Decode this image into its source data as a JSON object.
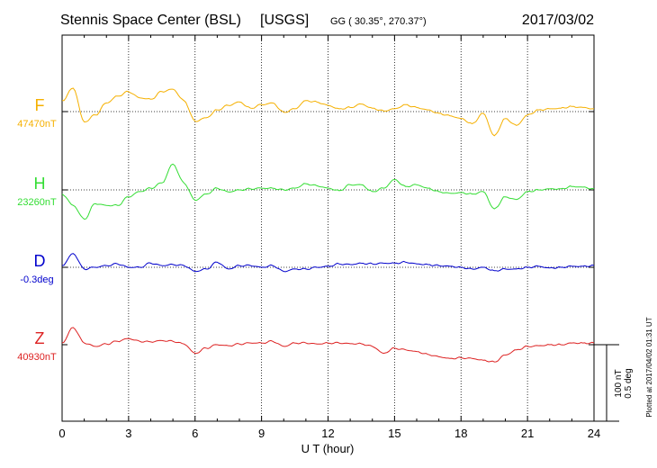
{
  "header": {
    "station": "Stennis Space Center (BSL)",
    "network": "[USGS]",
    "coords": "GG ( 30.35°, 270.37°)",
    "date": "2017/03/02"
  },
  "scale_bar": {
    "line1": "100 nT",
    "line2": "0.5 deg"
  },
  "plotted_note": "Plotted at 2017/04/02 01:31  UT",
  "chart_data": {
    "type": "line",
    "xlabel": "U T (hour)",
    "xlim": [
      0,
      24
    ],
    "xticks": [
      "0",
      "3",
      "6",
      "9",
      "12",
      "15",
      "18",
      "21",
      "24"
    ],
    "grid": true,
    "scale_nT_per_division": 100,
    "scale_deg_per_division": 0.5,
    "x": [
      0,
      0.5,
      1,
      1.5,
      2,
      2.5,
      3,
      3.5,
      4,
      4.5,
      5,
      5.5,
      6,
      6.5,
      7,
      7.5,
      8,
      8.5,
      9,
      9.5,
      10,
      10.5,
      11,
      11.5,
      12,
      12.5,
      13,
      13.5,
      14,
      14.5,
      15,
      15.5,
      16,
      16.5,
      17,
      17.5,
      18,
      18.5,
      19,
      19.5,
      20,
      20.5,
      21,
      21.5,
      22,
      22.5,
      23,
      23.5,
      24
    ],
    "series": [
      {
        "name": "F",
        "baseline_label": "47470nT",
        "color": "#f5b000",
        "values": [
          32,
          68,
          -30,
          -10,
          25,
          45,
          58,
          40,
          36,
          58,
          65,
          32,
          -28,
          -18,
          5,
          18,
          28,
          10,
          20,
          25,
          -2,
          8,
          32,
          28,
          18,
          8,
          12,
          22,
          10,
          2,
          8,
          20,
          12,
          5,
          -5,
          -12,
          -20,
          -35,
          -5,
          -70,
          -20,
          -40,
          -10,
          5,
          8,
          10,
          15,
          12,
          8
        ]
      },
      {
        "name": "H",
        "baseline_label": "23260nT",
        "color": "#33dd33",
        "values": [
          -12,
          -45,
          -85,
          -40,
          -45,
          -45,
          -20,
          -5,
          5,
          20,
          75,
          20,
          -30,
          -12,
          5,
          -6,
          0,
          3,
          5,
          5,
          0,
          5,
          18,
          12,
          5,
          -2,
          15,
          15,
          -5,
          5,
          30,
          10,
          15,
          5,
          -5,
          -10,
          -8,
          -12,
          -5,
          -55,
          -20,
          -28,
          -5,
          0,
          3,
          3,
          10,
          8,
          3
        ]
      },
      {
        "name": "D",
        "baseline_label": "-0.3deg",
        "color": "#0000cc",
        "values": [
          5,
          40,
          -5,
          0,
          5,
          10,
          0,
          0,
          12,
          5,
          8,
          5,
          -12,
          -5,
          15,
          -5,
          5,
          5,
          0,
          5,
          -12,
          -5,
          -5,
          0,
          3,
          10,
          8,
          12,
          10,
          12,
          12,
          15,
          10,
          8,
          5,
          3,
          0,
          -5,
          0,
          -10,
          -5,
          -5,
          0,
          3,
          -2,
          0,
          3,
          3,
          5
        ]
      },
      {
        "name": "Z",
        "baseline_label": "40930nT",
        "color": "#dd2222",
        "values": [
          5,
          50,
          5,
          -5,
          2,
          10,
          18,
          10,
          8,
          12,
          10,
          2,
          -25,
          -10,
          0,
          -3,
          2,
          5,
          5,
          10,
          -5,
          5,
          5,
          2,
          5,
          5,
          3,
          3,
          -5,
          -25,
          -10,
          -15,
          -20,
          -28,
          -35,
          -40,
          -38,
          -40,
          -45,
          -50,
          -30,
          -15,
          -5,
          -3,
          0,
          0,
          5,
          5,
          5
        ]
      }
    ]
  }
}
